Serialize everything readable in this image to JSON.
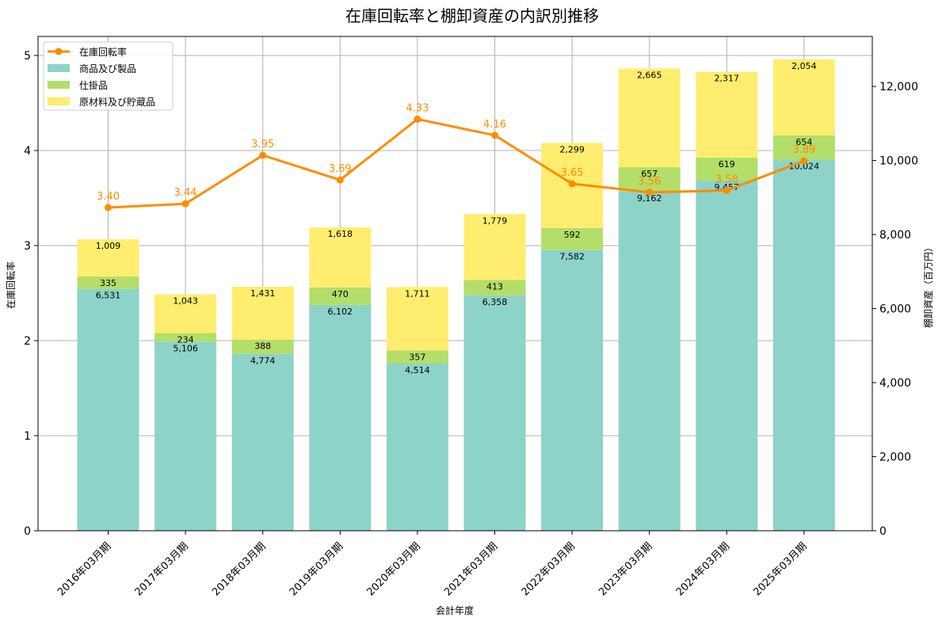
{
  "chart_data": {
    "type": "bar",
    "title": "在庫回転率と棚卸資産の内訳別推移",
    "xlabel": "会計年度",
    "ylabel_left": "在庫回転率",
    "ylabel_right": "棚卸資産（百万円）",
    "categories": [
      "2016年03月期",
      "2017年03月期",
      "2018年03月期",
      "2019年03月期",
      "2020年03月期",
      "2021年03月期",
      "2022年03月期",
      "2023年03月期",
      "2024年03月期",
      "2025年03月期"
    ],
    "ylim_left": [
      0,
      5.2
    ],
    "ylim_right": [
      0,
      13350
    ],
    "yticks_left": [
      "0",
      "1",
      "2",
      "3",
      "4",
      "5"
    ],
    "yticks_right": [
      "0",
      "2,000",
      "4,000",
      "6,000",
      "8,000",
      "10,000",
      "12,000"
    ],
    "grid": true,
    "legend_position": "top-left",
    "series": [
      {
        "name": "商品及び製品",
        "kind": "bar",
        "axis": "right",
        "color": "#8dd3c7",
        "values": [
          6531,
          5106,
          4774,
          6102,
          4514,
          6358,
          7582,
          9162,
          9457,
          10024
        ],
        "labels": [
          "6,531",
          "5,106",
          "4,774",
          "6,102",
          "4,514",
          "6,358",
          "7,582",
          "9,162",
          "9,457",
          "10,024"
        ]
      },
      {
        "name": "仕掛品",
        "kind": "bar",
        "axis": "right",
        "color": "#b3de69",
        "values": [
          335,
          234,
          388,
          470,
          357,
          413,
          592,
          657,
          619,
          654
        ],
        "labels": [
          "335",
          "234",
          "388",
          "470",
          "357",
          "413",
          "592",
          "657",
          "619",
          "654"
        ]
      },
      {
        "name": "原材料及び貯蔵品",
        "kind": "bar",
        "axis": "right",
        "color": "#ffed6f",
        "values": [
          1009,
          1043,
          1431,
          1618,
          1711,
          1779,
          2299,
          2665,
          2317,
          2054
        ],
        "labels": [
          "1,009",
          "1,043",
          "1,431",
          "1,618",
          "1,711",
          "1,779",
          "2,299",
          "2,665",
          "2,317",
          "2,054"
        ]
      },
      {
        "name": "在庫回転率",
        "kind": "line",
        "axis": "left",
        "color": "#ff8c00",
        "values": [
          3.4,
          3.44,
          3.95,
          3.69,
          4.33,
          4.16,
          3.65,
          3.56,
          3.58,
          3.89
        ],
        "labels": [
          "3.40",
          "3.44",
          "3.95",
          "3.69",
          "4.33",
          "4.16",
          "3.65",
          "3.56",
          "3.58",
          "3.89"
        ]
      }
    ]
  }
}
